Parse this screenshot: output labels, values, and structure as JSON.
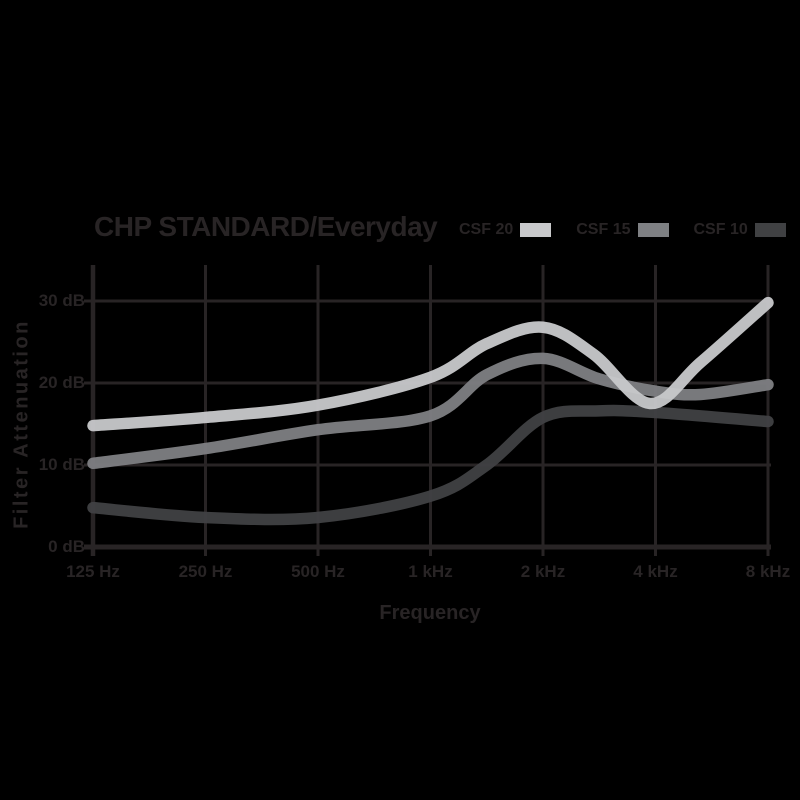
{
  "colors": {
    "background": "#000000",
    "grid": "#282425",
    "ink": "#282425",
    "series_light": "#c8c9cb",
    "series_medium": "#7e8083",
    "series_dark": "#404143"
  },
  "legend": {
    "entries": [
      {
        "label": "CSF 20",
        "color": "#c8c9cb"
      },
      {
        "label": "CSF 15",
        "color": "#7e8083"
      },
      {
        "label": "CSF 10",
        "color": "#404143"
      }
    ]
  },
  "chart_data": {
    "type": "line",
    "title": "CHP STANDARD/Everyday",
    "xlabel": "Frequency",
    "ylabel": "Filter Attenuation",
    "x_scale": "logarithmic (octaves from 125 Hz)",
    "x_ticks": [
      "125 Hz",
      "250 Hz",
      "500 Hz",
      "1 kHz",
      "2 kHz",
      "4 kHz",
      "8 kHz"
    ],
    "x_tick_frequencies_hz": [
      125,
      250,
      500,
      1000,
      2000,
      4000,
      8000
    ],
    "y_ticks_top_to_bottom": [
      "30 dB",
      "20 dB",
      "10 dB",
      "0 dB"
    ],
    "y_tick_values_db": [
      30,
      20,
      10,
      0
    ],
    "ylim": [
      0,
      30
    ],
    "grid": true,
    "legend_position": "top-right",
    "series": [
      {
        "name": "CSF 20",
        "color": "#c8c9cb",
        "points_octave_db": [
          [
            0,
            14.8
          ],
          [
            1,
            15.8
          ],
          [
            2,
            17.3
          ],
          [
            3,
            20.7
          ],
          [
            3.5,
            24.8
          ],
          [
            4,
            26.8
          ],
          [
            4.45,
            23.5
          ],
          [
            4.95,
            17.5
          ],
          [
            5.4,
            22.5
          ],
          [
            6,
            29.8
          ]
        ],
        "values_at_ticks_db": [
          14.8,
          15.8,
          17.3,
          20.7,
          26.8,
          17.6,
          29.8
        ]
      },
      {
        "name": "CSF 15",
        "color": "#7e8083",
        "points_octave_db": [
          [
            0,
            10.2
          ],
          [
            1,
            12
          ],
          [
            2,
            14.3
          ],
          [
            3,
            16
          ],
          [
            3.5,
            21
          ],
          [
            4,
            23
          ],
          [
            4.5,
            20.5
          ],
          [
            5,
            19
          ],
          [
            5.4,
            18.6
          ],
          [
            6,
            19.8
          ]
        ],
        "values_at_ticks_db": [
          10.2,
          12,
          14.3,
          16,
          23,
          19,
          19.8
        ]
      },
      {
        "name": "CSF 10",
        "color": "#404143",
        "points_octave_db": [
          [
            0,
            4.8
          ],
          [
            1,
            3.6
          ],
          [
            2,
            3.6
          ],
          [
            3,
            6.2
          ],
          [
            3.5,
            10
          ],
          [
            4,
            15.8
          ],
          [
            4.5,
            16.6
          ],
          [
            5,
            16.4
          ],
          [
            6,
            15.3
          ]
        ],
        "values_at_ticks_db": [
          4.8,
          3.6,
          3.6,
          6.2,
          15.8,
          16.4,
          15.3
        ]
      }
    ]
  }
}
